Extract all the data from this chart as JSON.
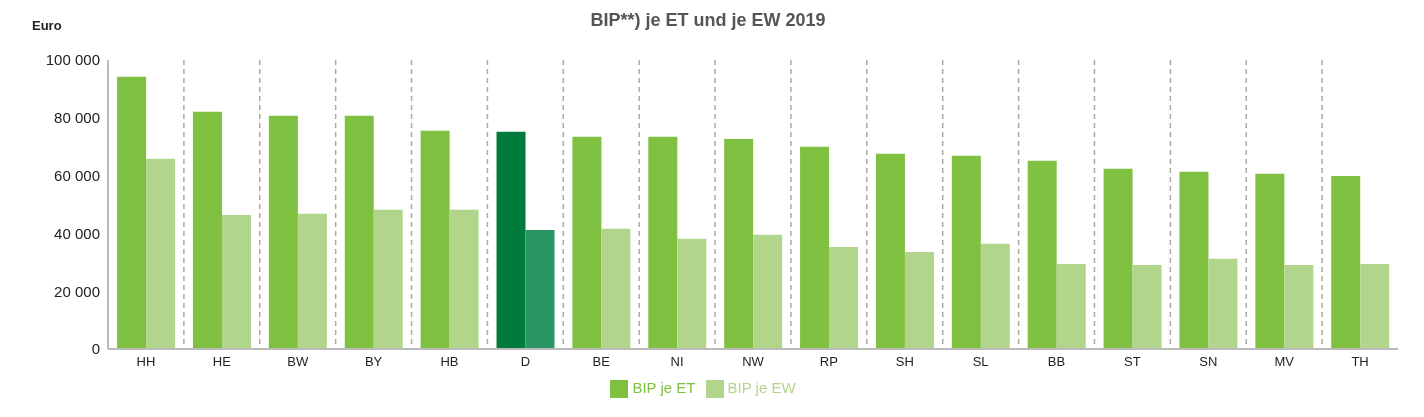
{
  "chart_data": {
    "type": "bar",
    "title": "BIP**) je ET und je EW 2019",
    "ylabel": "Euro",
    "categories": [
      "HH",
      "HE",
      "BW",
      "BY",
      "HB",
      "D",
      "BE",
      "NI",
      "NW",
      "RP",
      "SH",
      "SL",
      "BB",
      "ST",
      "SN",
      "MV",
      "TH"
    ],
    "series": [
      {
        "name": "BIP je ET",
        "color": "#80c041",
        "colors": [
          "#80c041",
          "#80c041",
          "#80c041",
          "#80c041",
          "#80c041",
          "#007a3d",
          "#80c041",
          "#80c041",
          "#80c041",
          "#80c041",
          "#80c041",
          "#80c041",
          "#80c041",
          "#80c041",
          "#80c041",
          "#80c041",
          "#80c041"
        ],
        "values": [
          94200,
          82100,
          80700,
          80700,
          75500,
          75200,
          73400,
          73400,
          72700,
          70000,
          67600,
          66900,
          65100,
          62400,
          61300,
          60600,
          59900
        ]
      },
      {
        "name": "BIP je EW",
        "color": "#b2d58c",
        "colors": [
          "#b2d58c",
          "#b2d58c",
          "#b2d58c",
          "#b2d58c",
          "#b2d58c",
          "#2b9664",
          "#b2d58c",
          "#b2d58c",
          "#b2d58c",
          "#b2d58c",
          "#b2d58c",
          "#b2d58c",
          "#b2d58c",
          "#b2d58c",
          "#b2d58c",
          "#b2d58c",
          "#b2d58c"
        ],
        "values": [
          65800,
          46400,
          46800,
          48200,
          48200,
          41200,
          41600,
          38100,
          39500,
          35300,
          33600,
          36400,
          29400,
          29100,
          31200,
          29100,
          29400
        ]
      }
    ],
    "ylim": [
      0,
      100000
    ],
    "yticks": [
      {
        "value": 0,
        "label": "0"
      },
      {
        "value": 20000,
        "label": "20 000"
      },
      {
        "value": 40000,
        "label": "40 000"
      },
      {
        "value": 60000,
        "label": "60 000"
      },
      {
        "value": 80000,
        "label": "80 000"
      },
      {
        "value": 100000,
        "label": "100 000"
      }
    ],
    "grid": "x",
    "legend": "bottom"
  }
}
